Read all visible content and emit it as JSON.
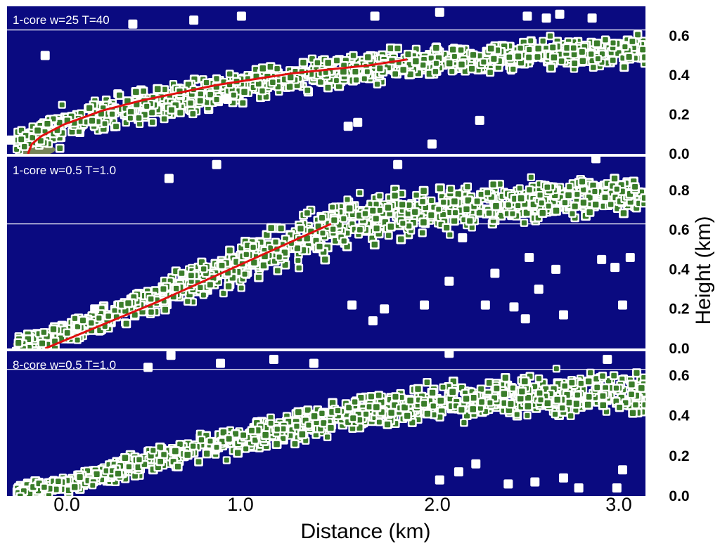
{
  "colors": {
    "background": "#0a0a80",
    "band": "#2f8f2f",
    "box_fill": "#ffffff",
    "box_core": "#3a7d2a",
    "fit_line": "#e01010",
    "reference_line": "#ffffff",
    "terrain": "#8a9a50"
  },
  "x_axis": {
    "label": "Distance (km)",
    "ticks": [
      "0.0",
      "1.0",
      "2.0",
      "3.0"
    ]
  },
  "y_axis": {
    "label": "Height (km)"
  },
  "chart_data": [
    {
      "type": "scatter",
      "panel_label": "1-core w=25 T=40",
      "xlim": [
        -0.3,
        3.05
      ],
      "ylim": [
        0.0,
        0.75
      ],
      "yticks": [
        "0.0",
        "0.2",
        "0.4",
        "0.6"
      ],
      "reference_line_y": 0.63,
      "trend_curve": {
        "x": [
          -0.19,
          -0.17,
          -0.12,
          0.0,
          0.2,
          0.4,
          0.6,
          0.8,
          1.0,
          1.2,
          1.4,
          1.6,
          1.8
        ],
        "y": [
          0.0,
          0.05,
          0.09,
          0.15,
          0.22,
          0.27,
          0.31,
          0.35,
          0.38,
          0.41,
          0.43,
          0.45,
          0.48
        ]
      },
      "band": {
        "x": [
          -0.25,
          0.0,
          0.5,
          1.0,
          1.5,
          2.0,
          2.5,
          3.05
        ],
        "lower": [
          -0.02,
          0.02,
          0.15,
          0.24,
          0.33,
          0.38,
          0.41,
          0.42
        ],
        "upper": [
          0.15,
          0.26,
          0.38,
          0.47,
          0.53,
          0.57,
          0.6,
          0.62
        ]
      },
      "outliers": {
        "x": [
          1.93,
          2.18,
          1.49,
          1.54,
          0.85,
          0.93,
          1.63,
          2.43,
          -0.1,
          0.36,
          0.68,
          1.97,
          2.53,
          -0.28,
          2.6,
          2.77
        ],
        "y": [
          0.05,
          0.17,
          0.14,
          0.16,
          0.28,
          0.7,
          0.7,
          0.7,
          0.5,
          0.66,
          0.68,
          0.72,
          0.69,
          0.07,
          0.71,
          0.69
        ]
      },
      "seed": 11
    },
    {
      "type": "scatter",
      "panel_label": "1-core w=0.5 T=1.0",
      "xlim": [
        -0.3,
        3.05
      ],
      "ylim": [
        0.0,
        0.97
      ],
      "yticks": [
        "0.0",
        "0.2",
        "0.4",
        "0.6",
        "0.8"
      ],
      "reference_line_y": 0.63,
      "trend_curve": {
        "x": [
          -0.1,
          0.2,
          0.5,
          0.8,
          1.1,
          1.4
        ],
        "y": [
          0.0,
          0.12,
          0.24,
          0.37,
          0.5,
          0.63
        ]
      },
      "band": {
        "x": [
          -0.25,
          0.0,
          0.5,
          1.0,
          1.5,
          2.0,
          2.5,
          3.05
        ],
        "lower": [
          -0.02,
          0.0,
          0.15,
          0.3,
          0.47,
          0.55,
          0.62,
          0.68
        ],
        "upper": [
          0.08,
          0.15,
          0.38,
          0.62,
          0.82,
          0.86,
          0.88,
          0.9
        ]
      },
      "outliers": {
        "x": [
          1.51,
          2.21,
          2.42,
          2.62,
          2.93,
          2.89,
          2.82,
          1.62,
          1.68,
          1.89,
          2.02,
          2.26,
          2.58,
          2.49,
          2.36,
          0.16,
          0.55,
          0.8,
          2.79,
          2.44,
          2.09,
          1.75,
          2.97
        ],
        "y": [
          0.22,
          0.22,
          0.15,
          0.17,
          0.22,
          0.41,
          0.45,
          0.14,
          0.2,
          0.22,
          0.34,
          0.38,
          0.4,
          0.3,
          0.21,
          0.2,
          0.86,
          0.93,
          0.96,
          0.46,
          0.56,
          0.93,
          0.46
        ]
      },
      "seed": 29
    },
    {
      "type": "scatter",
      "panel_label": "8-core w=0.5 T=1.0",
      "xlim": [
        -0.3,
        3.05
      ],
      "ylim": [
        0.0,
        0.72
      ],
      "yticks": [
        "0.0",
        "0.2",
        "0.4",
        "0.6"
      ],
      "reference_line_y": 0.63,
      "band": {
        "x": [
          -0.25,
          0.0,
          0.5,
          1.0,
          1.5,
          2.0,
          2.5,
          3.05
        ],
        "lower": [
          -0.01,
          0.0,
          0.1,
          0.2,
          0.29,
          0.35,
          0.36,
          0.36
        ],
        "upper": [
          0.06,
          0.12,
          0.28,
          0.4,
          0.52,
          0.6,
          0.64,
          0.66
        ]
      },
      "outliers": {
        "x": [
          0.44,
          0.56,
          0.82,
          1.1,
          1.31,
          2.62,
          2.7,
          2.9,
          2.33,
          2.85,
          2.47,
          2.16,
          1.97,
          2.07,
          2.93,
          2.02
        ],
        "y": [
          0.64,
          0.7,
          0.66,
          0.68,
          0.66,
          0.09,
          0.04,
          0.04,
          0.06,
          0.68,
          0.07,
          0.16,
          0.08,
          0.12,
          0.13,
          0.71
        ]
      },
      "seed": 47
    }
  ]
}
